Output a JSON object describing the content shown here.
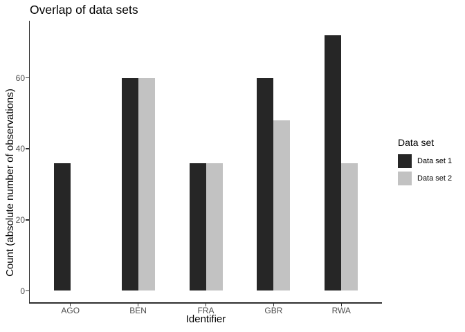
{
  "title": "Overlap of data sets",
  "chart_data": {
    "type": "bar",
    "categories": [
      "AGO",
      "BEN",
      "FRA",
      "GBR",
      "RWA"
    ],
    "series": [
      {
        "name": "Data set 1",
        "color": "#262626",
        "values": [
          36,
          60,
          36,
          60,
          72
        ]
      },
      {
        "name": "Data set 2",
        "color": "#c2c2c2",
        "values": [
          null,
          60,
          36,
          48,
          36
        ]
      }
    ],
    "xlabel": "Identifier",
    "ylabel": "Count (absolute number of observations)",
    "yticks": [
      "0",
      "20",
      "40",
      "60"
    ],
    "ytick_values": [
      0,
      20,
      40,
      60
    ],
    "ylim": [
      0,
      76
    ],
    "grid": false,
    "legend_title": "Data set",
    "legend_position": "right",
    "colors": {
      "axis_line": "#2e2e2e",
      "tick_text": "#4d4d4d",
      "title_text": "#000000"
    }
  }
}
